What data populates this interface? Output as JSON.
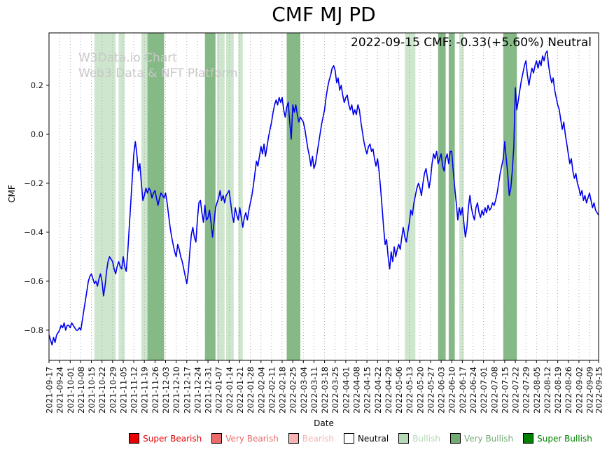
{
  "title": "CMF MJ PD",
  "annotation": "2022-09-15 CMF: -0.33(+5.60%) Neutral",
  "watermark": {
    "line1": "W3Data.io Chart",
    "line2": "Web3 Data & NFT Platform"
  },
  "axes": {
    "xlabel": "Date",
    "ylabel": "CMF"
  },
  "legend": {
    "position": "bottom-center",
    "items": [
      {
        "label": "Super Bearish",
        "color": "#e80000",
        "text_color": "#e80000"
      },
      {
        "label": "Very Bearish",
        "color": "#ed6a6a",
        "text_color": "#ed6a6a"
      },
      {
        "label": "Bearish",
        "color": "#f5b3b3",
        "text_color": "#f5b3b3"
      },
      {
        "label": "Neutral",
        "color": "#ffffff",
        "text_color": "#000000"
      },
      {
        "label": "Bullish",
        "color": "#b5d9b5",
        "text_color": "#b5d9b5"
      },
      {
        "label": "Very Bullish",
        "color": "#72ab72",
        "text_color": "#72ab72"
      },
      {
        "label": "Super Bullish",
        "color": "#008000",
        "text_color": "#008000"
      }
    ]
  },
  "chart_data": {
    "type": "line",
    "series_name": "CMF",
    "title": "CMF MJ PD",
    "xlabel": "Date",
    "ylabel": "CMF",
    "x_start_date": "2021-09-17",
    "x_end_date": "2022-09-15",
    "total_days": 363,
    "ylim": [
      -0.923,
      0.414
    ],
    "grid": "vertical-dotted",
    "legend_position": "bottom",
    "line_color": "#0000ee",
    "grid_color": "#999999",
    "band_colors": {
      "bullish": "#cde6cd",
      "very_bullish": "#85b985"
    },
    "yticks": [
      {
        "v": 0.2,
        "label": "0.2"
      },
      {
        "v": 0.0,
        "label": "0.0"
      },
      {
        "v": -0.2,
        "label": "−0.2"
      },
      {
        "v": -0.4,
        "label": "−0.4"
      },
      {
        "v": -0.6,
        "label": "−0.6"
      },
      {
        "v": -0.8,
        "label": "−0.8"
      }
    ],
    "xtick_labels": [
      "2021-09-17",
      "2021-09-24",
      "2021-10-01",
      "2021-10-08",
      "2021-10-15",
      "2021-10-22",
      "2021-10-29",
      "2021-11-05",
      "2021-11-12",
      "2021-11-19",
      "2021-11-26",
      "2021-12-03",
      "2021-12-10",
      "2021-12-17",
      "2021-12-24",
      "2021-12-31",
      "2022-01-07",
      "2022-01-14",
      "2022-01-21",
      "2022-01-28",
      "2022-02-04",
      "2022-02-11",
      "2022-02-18",
      "2022-02-25",
      "2022-03-04",
      "2022-03-11",
      "2022-03-18",
      "2022-03-25",
      "2022-04-01",
      "2022-04-08",
      "2022-04-15",
      "2022-04-22",
      "2022-04-29",
      "2022-05-06",
      "2022-05-13",
      "2022-05-20",
      "2022-05-27",
      "2022-06-03",
      "2022-06-10",
      "2022-06-17",
      "2022-06-24",
      "2022-07-01",
      "2022-07-08",
      "2022-07-15",
      "2022-07-22",
      "2022-07-29",
      "2022-08-05",
      "2022-08-12",
      "2022-08-19",
      "2022-08-26",
      "2022-09-02",
      "2022-09-09",
      "2022-09-15"
    ],
    "values": [
      -0.82,
      -0.84,
      -0.86,
      -0.83,
      -0.85,
      -0.82,
      -0.81,
      -0.8,
      -0.78,
      -0.79,
      -0.77,
      -0.8,
      -0.78,
      -0.78,
      -0.79,
      -0.77,
      -0.78,
      -0.79,
      -0.8,
      -0.8,
      -0.79,
      -0.8,
      -0.76,
      -0.72,
      -0.68,
      -0.64,
      -0.6,
      -0.58,
      -0.57,
      -0.59,
      -0.61,
      -0.6,
      -0.62,
      -0.59,
      -0.57,
      -0.6,
      -0.66,
      -0.62,
      -0.56,
      -0.52,
      -0.5,
      -0.51,
      -0.52,
      -0.55,
      -0.57,
      -0.54,
      -0.52,
      -0.54,
      -0.55,
      -0.5,
      -0.54,
      -0.56,
      -0.48,
      -0.38,
      -0.28,
      -0.18,
      -0.08,
      -0.03,
      -0.08,
      -0.15,
      -0.12,
      -0.2,
      -0.27,
      -0.25,
      -0.22,
      -0.24,
      -0.22,
      -0.23,
      -0.26,
      -0.24,
      -0.23,
      -0.26,
      -0.29,
      -0.26,
      -0.24,
      -0.25,
      -0.26,
      -0.24,
      -0.28,
      -0.33,
      -0.38,
      -0.42,
      -0.45,
      -0.48,
      -0.5,
      -0.45,
      -0.47,
      -0.5,
      -0.52,
      -0.55,
      -0.58,
      -0.61,
      -0.56,
      -0.48,
      -0.41,
      -0.38,
      -0.42,
      -0.44,
      -0.35,
      -0.28,
      -0.27,
      -0.32,
      -0.36,
      -0.29,
      -0.35,
      -0.34,
      -0.31,
      -0.36,
      -0.42,
      -0.36,
      -0.3,
      -0.28,
      -0.26,
      -0.23,
      -0.27,
      -0.25,
      -0.28,
      -0.25,
      -0.24,
      -0.23,
      -0.28,
      -0.33,
      -0.36,
      -0.3,
      -0.33,
      -0.35,
      -0.3,
      -0.34,
      -0.38,
      -0.34,
      -0.32,
      -0.35,
      -0.31,
      -0.28,
      -0.25,
      -0.21,
      -0.16,
      -0.11,
      -0.13,
      -0.09,
      -0.05,
      -0.08,
      -0.04,
      -0.09,
      -0.05,
      -0.01,
      0.02,
      0.05,
      0.09,
      0.12,
      0.14,
      0.12,
      0.15,
      0.13,
      0.15,
      0.1,
      0.07,
      0.11,
      0.13,
      0.05,
      -0.02,
      0.12,
      0.09,
      0.12,
      0.08,
      0.05,
      0.07,
      0.06,
      0.05,
      0.02,
      -0.02,
      -0.06,
      -0.09,
      -0.13,
      -0.09,
      -0.14,
      -0.12,
      -0.08,
      -0.04,
      0.0,
      0.04,
      0.07,
      0.1,
      0.15,
      0.19,
      0.22,
      0.24,
      0.27,
      0.28,
      0.26,
      0.21,
      0.23,
      0.18,
      0.2,
      0.16,
      0.13,
      0.15,
      0.16,
      0.12,
      0.1,
      0.12,
      0.08,
      0.1,
      0.08,
      0.12,
      0.1,
      0.05,
      0.01,
      -0.03,
      -0.06,
      -0.08,
      -0.05,
      -0.04,
      -0.07,
      -0.06,
      -0.1,
      -0.13,
      -0.1,
      -0.15,
      -0.22,
      -0.3,
      -0.38,
      -0.45,
      -0.43,
      -0.5,
      -0.55,
      -0.48,
      -0.52,
      -0.46,
      -0.5,
      -0.47,
      -0.45,
      -0.47,
      -0.42,
      -0.38,
      -0.42,
      -0.44,
      -0.4,
      -0.36,
      -0.31,
      -0.33,
      -0.28,
      -0.25,
      -0.22,
      -0.2,
      -0.22,
      -0.25,
      -0.2,
      -0.16,
      -0.14,
      -0.18,
      -0.22,
      -0.18,
      -0.12,
      -0.08,
      -0.1,
      -0.07,
      -0.12,
      -0.1,
      -0.08,
      -0.13,
      -0.15,
      -0.1,
      -0.08,
      -0.12,
      -0.07,
      -0.07,
      -0.15,
      -0.22,
      -0.28,
      -0.35,
      -0.3,
      -0.33,
      -0.3,
      -0.36,
      -0.42,
      -0.38,
      -0.3,
      -0.25,
      -0.3,
      -0.33,
      -0.35,
      -0.3,
      -0.28,
      -0.32,
      -0.34,
      -0.31,
      -0.33,
      -0.3,
      -0.32,
      -0.29,
      -0.31,
      -0.3,
      -0.28,
      -0.29,
      -0.27,
      -0.24,
      -0.2,
      -0.16,
      -0.13,
      -0.1,
      -0.03,
      -0.1,
      -0.16,
      -0.25,
      -0.22,
      -0.15,
      -0.05,
      0.19,
      0.1,
      0.14,
      0.18,
      0.22,
      0.25,
      0.28,
      0.3,
      0.24,
      0.2,
      0.24,
      0.27,
      0.25,
      0.28,
      0.3,
      0.27,
      0.3,
      0.28,
      0.32,
      0.3,
      0.33,
      0.34,
      0.28,
      0.24,
      0.21,
      0.23,
      0.18,
      0.15,
      0.12,
      0.1,
      0.06,
      0.02,
      0.05,
      0.0,
      -0.04,
      -0.08,
      -0.12,
      -0.1,
      -0.15,
      -0.18,
      -0.16,
      -0.2,
      -0.22,
      -0.25,
      -0.23,
      -0.27,
      -0.25,
      -0.28,
      -0.26,
      -0.24,
      -0.27,
      -0.3,
      -0.28,
      -0.31,
      -0.32,
      -0.33
    ],
    "bands": [
      {
        "start_day": 30,
        "end_day": 44,
        "level": "bullish"
      },
      {
        "start_day": 46,
        "end_day": 50,
        "level": "bullish"
      },
      {
        "start_day": 61,
        "end_day": 65,
        "level": "bullish"
      },
      {
        "start_day": 65,
        "end_day": 76,
        "level": "very_bullish"
      },
      {
        "start_day": 103,
        "end_day": 110,
        "level": "very_bullish"
      },
      {
        "start_day": 111,
        "end_day": 116,
        "level": "bullish"
      },
      {
        "start_day": 117,
        "end_day": 122,
        "level": "bullish"
      },
      {
        "start_day": 125,
        "end_day": 128,
        "level": "bullish"
      },
      {
        "start_day": 157,
        "end_day": 166,
        "level": "very_bullish"
      },
      {
        "start_day": 235,
        "end_day": 242,
        "level": "bullish"
      },
      {
        "start_day": 257,
        "end_day": 262,
        "level": "very_bullish"
      },
      {
        "start_day": 264,
        "end_day": 268,
        "level": "very_bullish"
      },
      {
        "start_day": 271,
        "end_day": 274,
        "level": "bullish"
      },
      {
        "start_day": 300,
        "end_day": 309,
        "level": "very_bullish"
      }
    ]
  }
}
